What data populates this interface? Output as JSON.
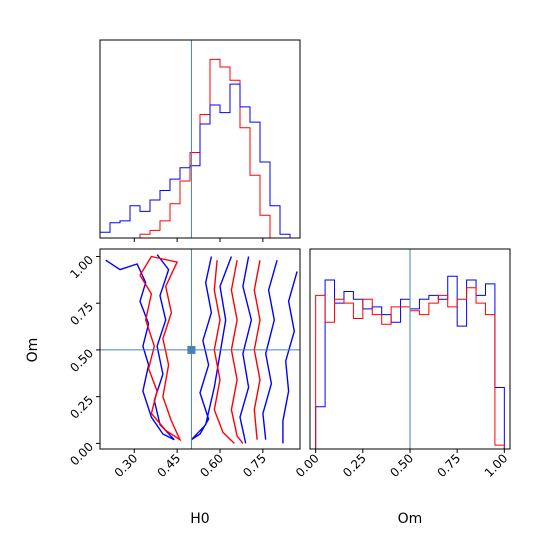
{
  "chart_data": [
    {
      "panel": "marginal-H0",
      "type": "histogram-step",
      "xlim": [
        0.18,
        0.88
      ],
      "bin_edges": [
        0.18,
        0.215,
        0.25,
        0.285,
        0.32,
        0.355,
        0.39,
        0.425,
        0.46,
        0.495,
        0.53,
        0.565,
        0.6,
        0.635,
        0.67,
        0.705,
        0.74,
        0.775,
        0.81,
        0.845,
        0.88
      ],
      "series": [
        {
          "color": "#ff0000",
          "counts": [
            0,
            0,
            0,
            0,
            0.02,
            0.04,
            0.09,
            0.18,
            0.3,
            0.45,
            0.65,
            0.94,
            0.9,
            0.83,
            0.58,
            0.33,
            0.12,
            0.0,
            0.0,
            0.0
          ]
        },
        {
          "color": "#0000ff",
          "counts": [
            0.03,
            0.08,
            0.09,
            0.17,
            0.14,
            0.2,
            0.25,
            0.31,
            0.37,
            0.38,
            0.6,
            0.7,
            0.66,
            0.81,
            0.69,
            0.61,
            0.4,
            0.17,
            0.02,
            0.0
          ]
        }
      ]
    },
    {
      "panel": "marginal-Om",
      "type": "histogram-step",
      "xlim": [
        -0.03,
        1.03
      ],
      "xlabel": "Om",
      "xticks": [
        "0.00",
        "0.25",
        "0.50",
        "0.75",
        "1.00"
      ],
      "tick_values": [
        0,
        0.25,
        0.5,
        0.75,
        1.0
      ],
      "bin_edges": [
        0,
        0.05,
        0.1,
        0.15,
        0.2,
        0.25,
        0.3,
        0.35,
        0.4,
        0.45,
        0.5,
        0.55,
        0.6,
        0.65,
        0.7,
        0.75,
        0.8,
        0.85,
        0.9,
        0.95,
        1.0
      ],
      "series": [
        {
          "color": "#0000ff",
          "counts": [
            0.22,
            0.88,
            0.76,
            0.82,
            0.78,
            0.73,
            0.74,
            0.7,
            0.66,
            0.78,
            0.73,
            0.78,
            0.8,
            0.78,
            0.9,
            0.64,
            0.88,
            0.8,
            0.86,
            0.32
          ]
        },
        {
          "color": "#ff0000",
          "counts": [
            0.8,
            0.66,
            0.78,
            0.76,
            0.68,
            0.78,
            0.7,
            0.65,
            0.74,
            0.74,
            0.72,
            0.7,
            0.76,
            0.8,
            0.74,
            0.78,
            0.84,
            0.76,
            0.7,
            0.02
          ]
        }
      ]
    },
    {
      "panel": "joint-H0-Om",
      "type": "contour",
      "xlim": [
        0.18,
        0.88
      ],
      "ylim": [
        -0.03,
        1.04
      ],
      "xlabel": "H0",
      "ylabel": "Om",
      "xticks": [
        "0.30",
        "0.45",
        "0.60",
        "0.75"
      ],
      "xtick_values": [
        0.3,
        0.45,
        0.6,
        0.75
      ],
      "yticks": [
        "0.00",
        "0.25",
        "0.50",
        "0.75",
        "1.00"
      ],
      "ytick_values": [
        0,
        0.25,
        0.5,
        0.75,
        1.0
      ],
      "truth": {
        "H0": 0.5,
        "Om": 0.5
      },
      "truth_color": "#4682b4",
      "contours": [
        {
          "color": "#0000ff",
          "points": [
            [
              0.2,
              0.98
            ],
            [
              0.25,
              0.93
            ],
            [
              0.31,
              0.96
            ],
            [
              0.34,
              0.86
            ],
            [
              0.32,
              0.76
            ],
            [
              0.35,
              0.64
            ],
            [
              0.33,
              0.52
            ],
            [
              0.35,
              0.42
            ],
            [
              0.33,
              0.28
            ],
            [
              0.36,
              0.14
            ],
            [
              0.4,
              0.05
            ],
            [
              0.44,
              0.02
            ],
            [
              0.39,
              0.1
            ],
            [
              0.37,
              0.23
            ],
            [
              0.4,
              0.37
            ],
            [
              0.38,
              0.52
            ],
            [
              0.41,
              0.66
            ],
            [
              0.39,
              0.79
            ],
            [
              0.42,
              0.93
            ],
            [
              0.38,
              1.01
            ]
          ]
        },
        {
          "color": "#0000ff",
          "points": [
            [
              0.57,
              1.0
            ],
            [
              0.55,
              0.86
            ],
            [
              0.57,
              0.7
            ],
            [
              0.54,
              0.55
            ],
            [
              0.56,
              0.42
            ],
            [
              0.53,
              0.27
            ],
            [
              0.56,
              0.13
            ],
            [
              0.53,
              0.05
            ],
            [
              0.5,
              0.02
            ],
            [
              0.55,
              0.1
            ],
            [
              0.58,
              0.3
            ],
            [
              0.6,
              0.48
            ],
            [
              0.62,
              0.66
            ],
            [
              0.6,
              0.84
            ],
            [
              0.64,
              1.0
            ]
          ]
        },
        {
          "color": "#0000ff",
          "points": [
            [
              0.7,
              1.0
            ],
            [
              0.68,
              0.84
            ],
            [
              0.71,
              0.66
            ],
            [
              0.68,
              0.48
            ],
            [
              0.7,
              0.3
            ],
            [
              0.67,
              0.14
            ],
            [
              0.69,
              0.0
            ]
          ]
        },
        {
          "color": "#0000ff",
          "points": [
            [
              0.8,
              0.98
            ],
            [
              0.77,
              0.82
            ],
            [
              0.79,
              0.66
            ],
            [
              0.76,
              0.48
            ],
            [
              0.78,
              0.32
            ],
            [
              0.75,
              0.16
            ],
            [
              0.76,
              0.02
            ]
          ]
        },
        {
          "color": "#0000ff",
          "points": [
            [
              0.87,
              0.92
            ],
            [
              0.84,
              0.76
            ],
            [
              0.86,
              0.6
            ],
            [
              0.83,
              0.44
            ],
            [
              0.84,
              0.28
            ],
            [
              0.82,
              0.12
            ],
            [
              0.82,
              0.0
            ]
          ]
        },
        {
          "color": "#ff0000",
          "points": [
            [
              0.32,
              0.9
            ],
            [
              0.36,
              0.8
            ],
            [
              0.34,
              0.66
            ],
            [
              0.37,
              0.52
            ],
            [
              0.35,
              0.4
            ],
            [
              0.38,
              0.28
            ],
            [
              0.36,
              0.16
            ],
            [
              0.41,
              0.07
            ],
            [
              0.46,
              0.02
            ],
            [
              0.43,
              0.12
            ],
            [
              0.4,
              0.25
            ],
            [
              0.42,
              0.42
            ],
            [
              0.4,
              0.56
            ],
            [
              0.43,
              0.7
            ],
            [
              0.41,
              0.84
            ],
            [
              0.45,
              0.97
            ],
            [
              0.36,
              1.0
            ],
            [
              0.32,
              0.9
            ]
          ]
        },
        {
          "color": "#ff0000",
          "points": [
            [
              0.59,
              0.98
            ],
            [
              0.58,
              0.82
            ],
            [
              0.6,
              0.66
            ],
            [
              0.58,
              0.5
            ],
            [
              0.6,
              0.34
            ],
            [
              0.58,
              0.18
            ],
            [
              0.61,
              0.06
            ],
            [
              0.65,
              0.0
            ]
          ]
        },
        {
          "color": "#ff0000",
          "points": [
            [
              0.66,
              0.98
            ],
            [
              0.64,
              0.82
            ],
            [
              0.66,
              0.66
            ],
            [
              0.64,
              0.5
            ],
            [
              0.66,
              0.34
            ],
            [
              0.64,
              0.18
            ],
            [
              0.66,
              0.04
            ],
            [
              0.68,
              0.0
            ]
          ]
        },
        {
          "color": "#ff0000",
          "points": [
            [
              0.74,
              0.98
            ],
            [
              0.72,
              0.82
            ],
            [
              0.74,
              0.66
            ],
            [
              0.72,
              0.5
            ],
            [
              0.74,
              0.34
            ],
            [
              0.72,
              0.18
            ],
            [
              0.73,
              0.02
            ]
          ]
        }
      ]
    }
  ]
}
